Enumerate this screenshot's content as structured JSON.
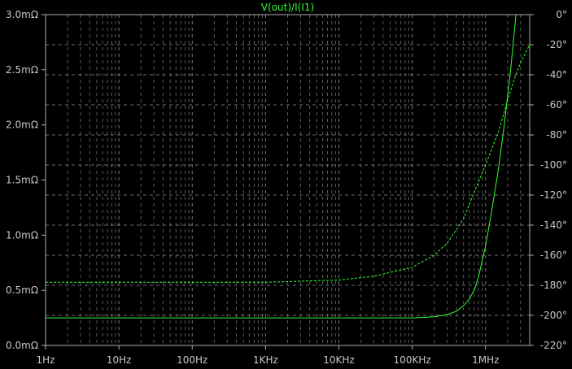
{
  "colors": {
    "background": "#000000",
    "frame": "#b0b0b0",
    "grid": "#8a8a8a",
    "tick_text": "#c8c8c8",
    "trace": "#33ff33"
  },
  "chart_data": {
    "type": "line",
    "title": "V(out)/I(I1)",
    "x_scale": "log",
    "xlim": [
      1,
      4000000
    ],
    "x_ticks": [
      {
        "value": 1,
        "label": "1Hz"
      },
      {
        "value": 10,
        "label": "10Hz"
      },
      {
        "value": 100,
        "label": "100Hz"
      },
      {
        "value": 1000,
        "label": "1KHz"
      },
      {
        "value": 10000,
        "label": "10KHz"
      },
      {
        "value": 100000,
        "label": "100KHz"
      },
      {
        "value": 1000000,
        "label": "1MHz"
      }
    ],
    "left_axis": {
      "unit": "mΩ",
      "ylim": [
        0,
        3.0
      ],
      "ticks": [
        {
          "value": 0.0,
          "label": "0.0mΩ"
        },
        {
          "value": 0.5,
          "label": "0.5mΩ"
        },
        {
          "value": 1.0,
          "label": "1.0mΩ"
        },
        {
          "value": 1.5,
          "label": "1.5mΩ"
        },
        {
          "value": 2.0,
          "label": "2.0mΩ"
        },
        {
          "value": 2.5,
          "label": "2.5mΩ"
        },
        {
          "value": 3.0,
          "label": "3.0mΩ"
        }
      ]
    },
    "right_axis": {
      "unit": "°",
      "ylim": [
        -220,
        0
      ],
      "ticks": [
        {
          "value": 0,
          "label": "0°"
        },
        {
          "value": -20,
          "label": "-20°"
        },
        {
          "value": -40,
          "label": "-40°"
        },
        {
          "value": -60,
          "label": "-60°"
        },
        {
          "value": -80,
          "label": "-80°"
        },
        {
          "value": -100,
          "label": "-100°"
        },
        {
          "value": -120,
          "label": "-120°"
        },
        {
          "value": -140,
          "label": "-140°"
        },
        {
          "value": -160,
          "label": "-160°"
        },
        {
          "value": -180,
          "label": "-180°"
        },
        {
          "value": -200,
          "label": "-200°"
        },
        {
          "value": -220,
          "label": "-220°"
        }
      ]
    },
    "grid": true,
    "series": [
      {
        "name": "V(out)/I(I1)",
        "axis": "left",
        "style": "solid",
        "points": [
          [
            1,
            0.25
          ],
          [
            10,
            0.25
          ],
          [
            100,
            0.25
          ],
          [
            1000,
            0.25
          ],
          [
            10000,
            0.25
          ],
          [
            100000,
            0.25
          ],
          [
            150000,
            0.255
          ],
          [
            200000,
            0.26
          ],
          [
            300000,
            0.28
          ],
          [
            400000,
            0.31
          ],
          [
            500000,
            0.36
          ],
          [
            600000,
            0.42
          ],
          [
            700000,
            0.5
          ],
          [
            800000,
            0.62
          ],
          [
            1000000,
            0.9
          ],
          [
            1200000,
            1.2
          ],
          [
            1500000,
            1.6
          ],
          [
            1800000,
            2.0
          ],
          [
            2200000,
            2.5
          ],
          [
            2600000,
            3.0
          ]
        ]
      },
      {
        "name": "",
        "axis": "right",
        "style": "dashed",
        "points": [
          [
            1,
            -178
          ],
          [
            10,
            -178
          ],
          [
            100,
            -178
          ],
          [
            1000,
            -178
          ],
          [
            10000,
            -176.5
          ],
          [
            30000,
            -174
          ],
          [
            100000,
            -168
          ],
          [
            200000,
            -160
          ],
          [
            300000,
            -152
          ],
          [
            500000,
            -136
          ],
          [
            700000,
            -118
          ],
          [
            1000000,
            -100
          ],
          [
            1500000,
            -78
          ],
          [
            2000000,
            -57
          ],
          [
            2500000,
            -42
          ],
          [
            3000000,
            -32
          ],
          [
            4000000,
            -20
          ]
        ]
      }
    ]
  }
}
